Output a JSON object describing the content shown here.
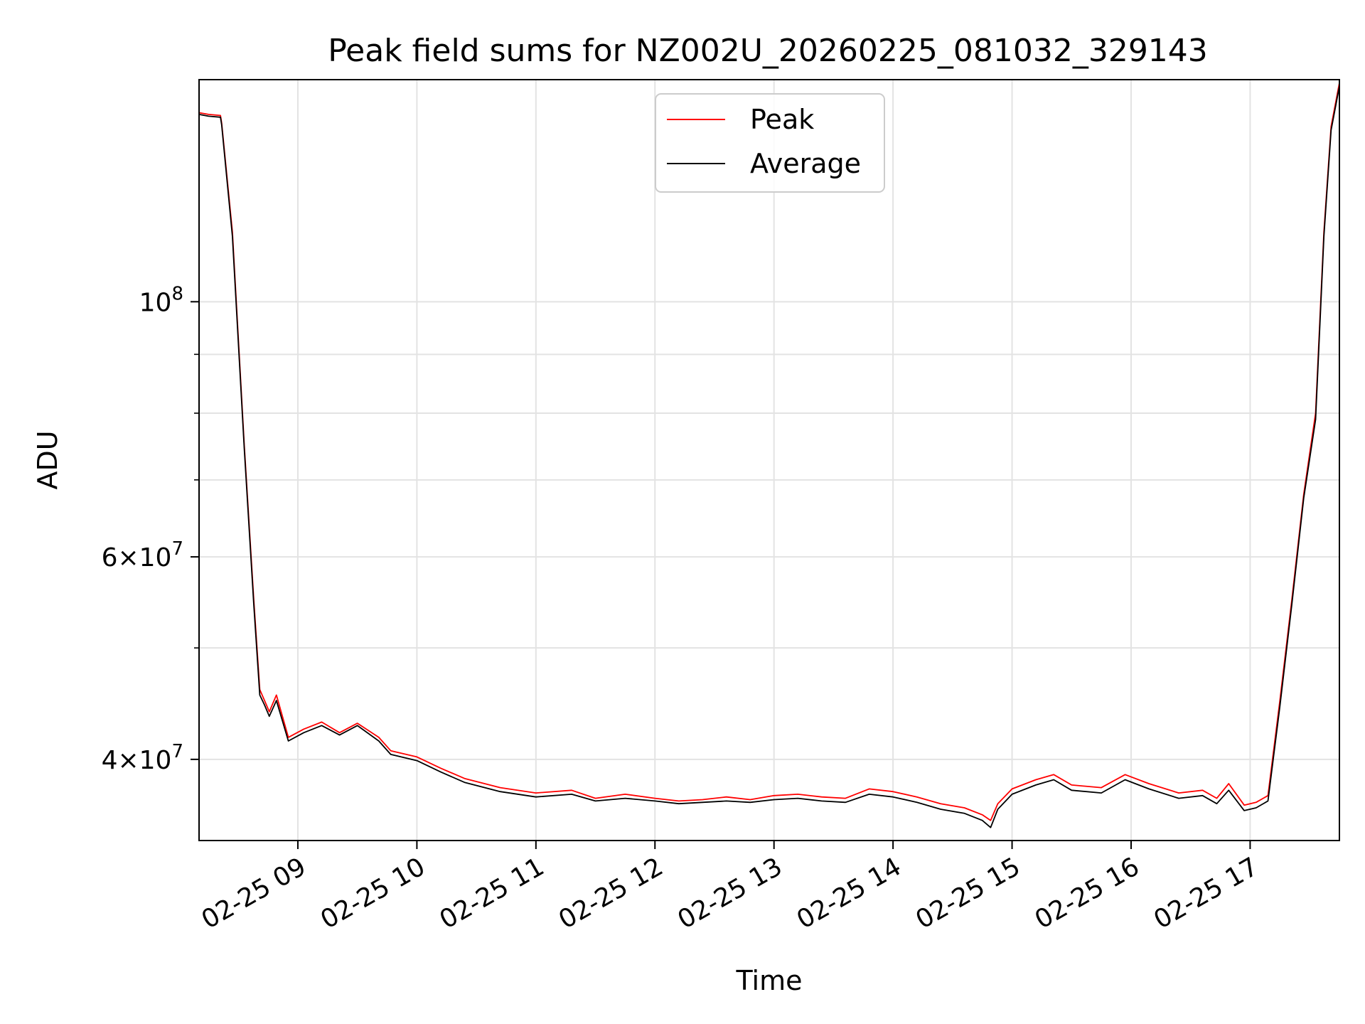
{
  "chart_data": {
    "type": "line",
    "title": "Peak field sums for NZ002U_20260225_081032_329143",
    "xlabel": "Time",
    "ylabel": "ADU",
    "yscale": "log",
    "ylim": [
      34000000,
      156000000
    ],
    "xlim_hours": [
      8.17,
      17.75
    ],
    "grid": true,
    "legend_position": "upper-center",
    "x_ticks": [
      {
        "hour": 9,
        "label": "02-25 09"
      },
      {
        "hour": 10,
        "label": "02-25 10"
      },
      {
        "hour": 11,
        "label": "02-25 11"
      },
      {
        "hour": 12,
        "label": "02-25 12"
      },
      {
        "hour": 13,
        "label": "02-25 13"
      },
      {
        "hour": 14,
        "label": "02-25 14"
      },
      {
        "hour": 15,
        "label": "02-25 15"
      },
      {
        "hour": 16,
        "label": "02-25 16"
      },
      {
        "hour": 17,
        "label": "02-25 17"
      }
    ],
    "y_major_ticks": [
      {
        "value": 40000000,
        "mantissa": "4",
        "exponent": "7"
      },
      {
        "value": 60000000,
        "mantissa": "6",
        "exponent": "7"
      },
      {
        "value": 100000000,
        "mantissa": "",
        "exponent": "8"
      }
    ],
    "y_minor_ticks": [
      50000000,
      70000000,
      80000000,
      90000000
    ],
    "series": [
      {
        "name": "Peak",
        "color": "#ff0000",
        "points": [
          [
            8.17,
            146000000
          ],
          [
            8.25,
            145500000
          ],
          [
            8.35,
            145200000
          ],
          [
            8.36,
            143000000
          ],
          [
            8.45,
            115000000
          ],
          [
            8.55,
            75000000
          ],
          [
            8.63,
            55000000
          ],
          [
            8.68,
            46000000
          ],
          [
            8.72,
            45000000
          ],
          [
            8.76,
            44000000
          ],
          [
            8.82,
            45500000
          ],
          [
            8.92,
            41800000
          ],
          [
            9.05,
            42500000
          ],
          [
            9.2,
            43100000
          ],
          [
            9.35,
            42200000
          ],
          [
            9.5,
            43000000
          ],
          [
            9.68,
            41800000
          ],
          [
            9.78,
            40700000
          ],
          [
            10.0,
            40200000
          ],
          [
            10.2,
            39300000
          ],
          [
            10.4,
            38500000
          ],
          [
            10.7,
            37800000
          ],
          [
            11.0,
            37400000
          ],
          [
            11.3,
            37600000
          ],
          [
            11.5,
            37000000
          ],
          [
            11.75,
            37300000
          ],
          [
            12.0,
            37000000
          ],
          [
            12.2,
            36800000
          ],
          [
            12.4,
            36900000
          ],
          [
            12.6,
            37100000
          ],
          [
            12.8,
            36900000
          ],
          [
            13.0,
            37200000
          ],
          [
            13.2,
            37300000
          ],
          [
            13.4,
            37100000
          ],
          [
            13.6,
            37000000
          ],
          [
            13.8,
            37700000
          ],
          [
            14.0,
            37500000
          ],
          [
            14.2,
            37100000
          ],
          [
            14.4,
            36600000
          ],
          [
            14.6,
            36300000
          ],
          [
            14.75,
            35800000
          ],
          [
            14.82,
            35400000
          ],
          [
            14.88,
            36600000
          ],
          [
            15.0,
            37700000
          ],
          [
            15.2,
            38400000
          ],
          [
            15.35,
            38800000
          ],
          [
            15.5,
            38000000
          ],
          [
            15.75,
            37800000
          ],
          [
            15.95,
            38800000
          ],
          [
            16.15,
            38100000
          ],
          [
            16.4,
            37400000
          ],
          [
            16.6,
            37600000
          ],
          [
            16.72,
            37000000
          ],
          [
            16.82,
            38100000
          ],
          [
            16.95,
            36500000
          ],
          [
            17.05,
            36700000
          ],
          [
            17.15,
            37200000
          ],
          [
            17.25,
            45000000
          ],
          [
            17.35,
            55000000
          ],
          [
            17.45,
            68000000
          ],
          [
            17.55,
            80000000
          ],
          [
            17.62,
            115000000
          ],
          [
            17.68,
            142000000
          ],
          [
            17.75,
            155000000
          ]
        ]
      },
      {
        "name": "Average",
        "color": "#000000",
        "points": [
          [
            8.17,
            145500000
          ],
          [
            8.25,
            145000000
          ],
          [
            8.35,
            144700000
          ],
          [
            8.36,
            142500000
          ],
          [
            8.45,
            114000000
          ],
          [
            8.55,
            74500000
          ],
          [
            8.63,
            54500000
          ],
          [
            8.68,
            45500000
          ],
          [
            8.72,
            44600000
          ],
          [
            8.76,
            43600000
          ],
          [
            8.82,
            45000000
          ],
          [
            8.92,
            41500000
          ],
          [
            9.05,
            42200000
          ],
          [
            9.2,
            42800000
          ],
          [
            9.35,
            42000000
          ],
          [
            9.5,
            42800000
          ],
          [
            9.68,
            41500000
          ],
          [
            9.78,
            40400000
          ],
          [
            10.0,
            39900000
          ],
          [
            10.2,
            39000000
          ],
          [
            10.4,
            38200000
          ],
          [
            10.7,
            37500000
          ],
          [
            11.0,
            37100000
          ],
          [
            11.3,
            37300000
          ],
          [
            11.5,
            36800000
          ],
          [
            11.75,
            37000000
          ],
          [
            12.0,
            36800000
          ],
          [
            12.2,
            36600000
          ],
          [
            12.4,
            36700000
          ],
          [
            12.6,
            36800000
          ],
          [
            12.8,
            36700000
          ],
          [
            13.0,
            36900000
          ],
          [
            13.2,
            37000000
          ],
          [
            13.4,
            36800000
          ],
          [
            13.6,
            36700000
          ],
          [
            13.8,
            37300000
          ],
          [
            14.0,
            37100000
          ],
          [
            14.2,
            36700000
          ],
          [
            14.4,
            36200000
          ],
          [
            14.6,
            35900000
          ],
          [
            14.75,
            35400000
          ],
          [
            14.82,
            34900000
          ],
          [
            14.88,
            36200000
          ],
          [
            15.0,
            37300000
          ],
          [
            15.2,
            38000000
          ],
          [
            15.35,
            38400000
          ],
          [
            15.5,
            37600000
          ],
          [
            15.75,
            37400000
          ],
          [
            15.95,
            38400000
          ],
          [
            16.15,
            37700000
          ],
          [
            16.4,
            37000000
          ],
          [
            16.6,
            37200000
          ],
          [
            16.72,
            36600000
          ],
          [
            16.82,
            37600000
          ],
          [
            16.95,
            36100000
          ],
          [
            17.05,
            36300000
          ],
          [
            17.15,
            36800000
          ],
          [
            17.25,
            44500000
          ],
          [
            17.35,
            54500000
          ],
          [
            17.45,
            67500000
          ],
          [
            17.55,
            79000000
          ],
          [
            17.62,
            114000000
          ],
          [
            17.68,
            141000000
          ],
          [
            17.75,
            154000000
          ]
        ]
      }
    ]
  }
}
